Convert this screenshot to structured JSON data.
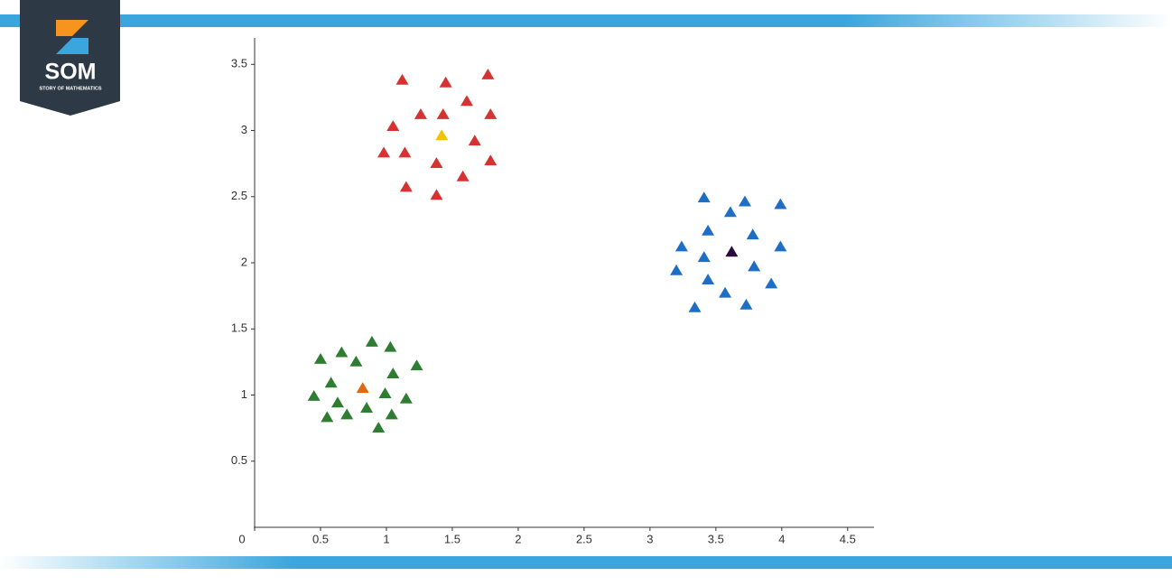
{
  "logo": {
    "text": "SOM",
    "subtitle": "STORY OF MATHEMATICS"
  },
  "chart_data": {
    "type": "scatter",
    "marker": "triangle",
    "xlim": [
      0,
      4.7
    ],
    "ylim": [
      0,
      3.7
    ],
    "xticks": [
      0,
      0.5,
      1,
      1.5,
      2,
      2.5,
      3,
      3.5,
      4,
      4.5
    ],
    "yticks": [
      0.5,
      1,
      1.5,
      2,
      2.5,
      3,
      3.5
    ],
    "series": [
      {
        "color": "#d63232",
        "x": [
          1.12,
          1.45,
          1.77,
          1.26,
          1.43,
          1.61,
          1.79,
          1.05,
          0.98,
          1.14,
          1.38,
          1.67,
          1.79,
          1.15,
          1.38,
          1.58
        ],
        "values": [
          3.38,
          3.36,
          3.42,
          3.12,
          3.12,
          3.22,
          3.12,
          3.03,
          2.83,
          2.83,
          2.75,
          2.92,
          2.77,
          2.57,
          2.51,
          2.65
        ]
      },
      {
        "color": "#f2c400",
        "x": [
          1.42
        ],
        "values": [
          2.96
        ]
      },
      {
        "color": "#1f6ec6",
        "x": [
          3.41,
          3.72,
          3.99,
          3.61,
          3.44,
          3.78,
          3.24,
          3.99,
          3.41,
          3.2,
          3.79,
          3.44,
          3.92,
          3.57,
          3.73,
          3.34
        ],
        "values": [
          2.49,
          2.46,
          2.44,
          2.38,
          2.24,
          2.21,
          2.12,
          2.12,
          2.04,
          1.94,
          1.97,
          1.87,
          1.84,
          1.77,
          1.68,
          1.66
        ]
      },
      {
        "color": "#2b0a3d",
        "x": [
          3.62
        ],
        "values": [
          2.08
        ]
      },
      {
        "color": "#2e7d32",
        "x": [
          0.89,
          1.03,
          0.66,
          0.5,
          0.77,
          1.23,
          1.05,
          0.58,
          0.45,
          0.99,
          1.15,
          0.63,
          0.85,
          0.7,
          1.04,
          0.55,
          0.94
        ],
        "values": [
          1.4,
          1.36,
          1.32,
          1.27,
          1.25,
          1.22,
          1.16,
          1.09,
          0.99,
          1.01,
          0.97,
          0.94,
          0.9,
          0.85,
          0.85,
          0.83,
          0.75
        ]
      },
      {
        "color": "#e0680f",
        "x": [
          0.82
        ],
        "values": [
          1.05
        ]
      }
    ]
  }
}
